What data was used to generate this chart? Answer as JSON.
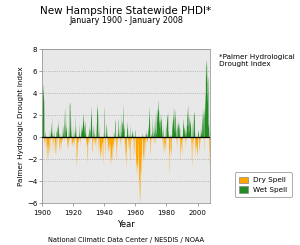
{
  "title": "New Hampshire Statewide PHDI*",
  "subtitle": "January 1900 - January 2008",
  "xlabel": "Year",
  "ylabel": "Palmer Hydrologic Drought Index",
  "footer": "National Climatic Data Center / NESDIS / NOAA",
  "annotation": "*Palmer Hydrological\nDrought Index",
  "ylim": [
    -6.0,
    8.0
  ],
  "xlim": [
    1900,
    2008
  ],
  "yticks": [
    -6.0,
    -4.0,
    -2.0,
    0.0,
    2.0,
    4.0,
    6.0,
    8.0
  ],
  "xticks": [
    1900,
    1920,
    1940,
    1960,
    1980,
    2000
  ],
  "dry_color": "#FFA500",
  "wet_color": "#228B22",
  "bg_color": "#e8e8e8",
  "legend_dry": "Dry Spell",
  "legend_wet": "Wet Spell",
  "seed": 42
}
